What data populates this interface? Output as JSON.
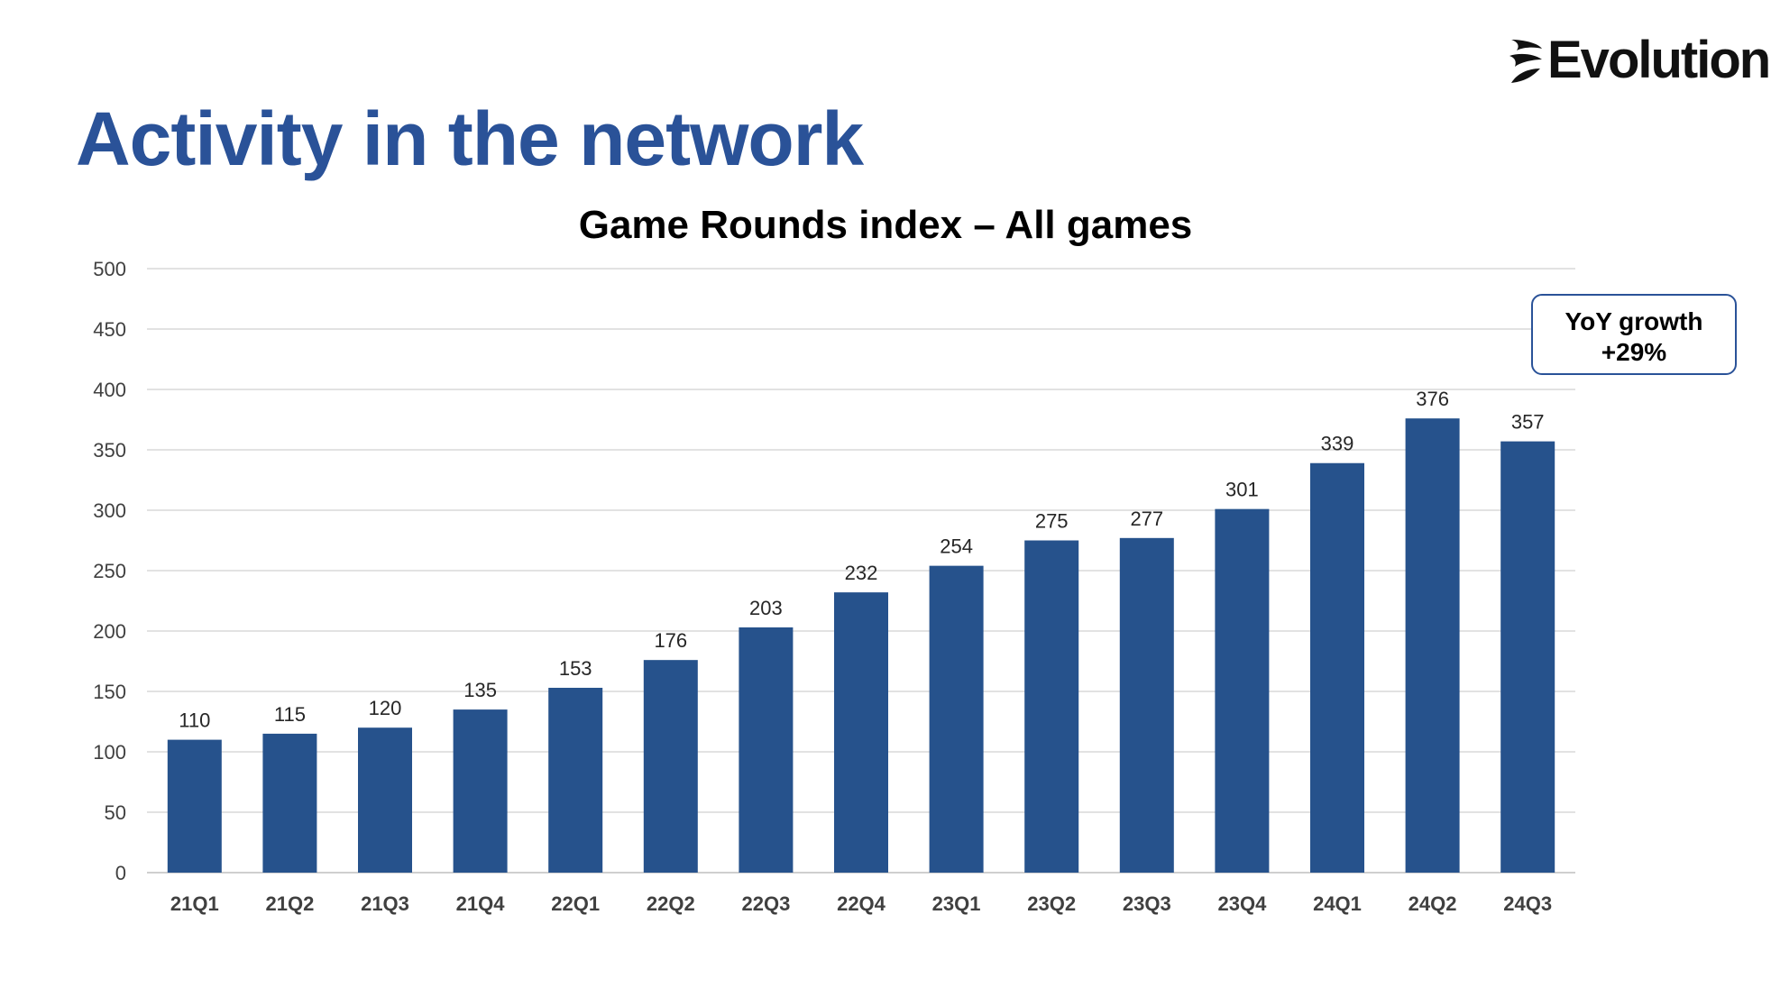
{
  "slide": {
    "title": "Activity in the network",
    "logo_text": "Evolution"
  },
  "callout": {
    "line1": "YoY growth",
    "line2": "+29%"
  },
  "colors": {
    "title": "#2a5298",
    "bar": "#26528c",
    "grid": "#d9d9d9"
  },
  "chart_data": {
    "type": "bar",
    "title": "Game Rounds index – All games",
    "xlabel": "",
    "ylabel": "",
    "ylim": [
      0,
      500
    ],
    "yticks": [
      0,
      50,
      100,
      150,
      200,
      250,
      300,
      350,
      400,
      450,
      500
    ],
    "grid": true,
    "categories": [
      "21Q1",
      "21Q2",
      "21Q3",
      "21Q4",
      "22Q1",
      "22Q2",
      "22Q3",
      "22Q4",
      "23Q1",
      "23Q2",
      "23Q3",
      "23Q4",
      "24Q1",
      "24Q2",
      "24Q3"
    ],
    "values": [
      110,
      115,
      120,
      135,
      153,
      176,
      203,
      232,
      254,
      275,
      277,
      301,
      339,
      376,
      357
    ]
  }
}
